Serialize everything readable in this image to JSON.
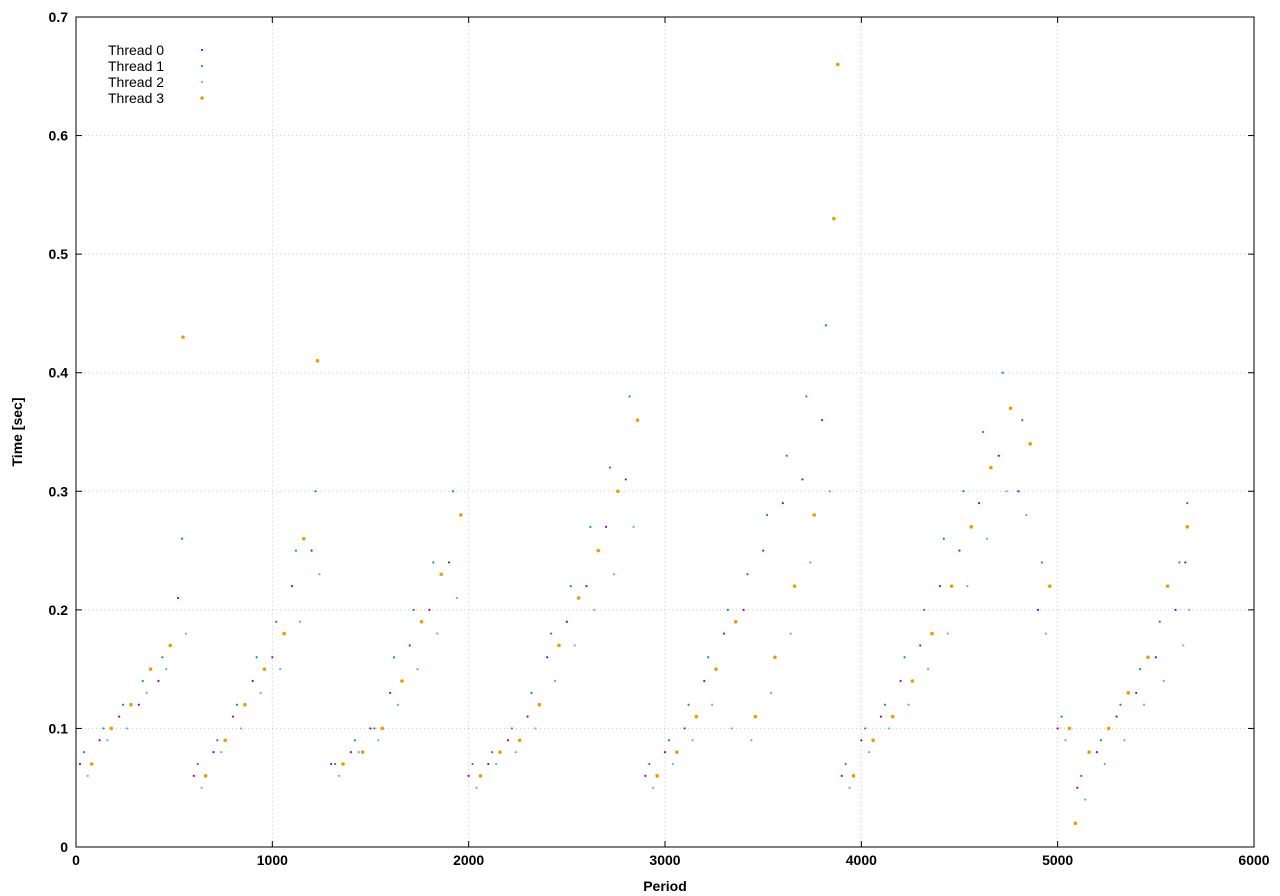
{
  "chart_data": {
    "type": "scatter",
    "title": "",
    "xlabel": "Period",
    "ylabel": "Time [sec]",
    "xlim": [
      0,
      6000
    ],
    "ylim": [
      0,
      0.7
    ],
    "xticks": [
      0,
      1000,
      2000,
      3000,
      4000,
      5000,
      6000
    ],
    "yticks": [
      0,
      0.1,
      0.2,
      0.3,
      0.4,
      0.5,
      0.6,
      0.7
    ],
    "xtick_labels": [
      "0",
      "1000",
      "2000",
      "3000",
      "4000",
      "5000",
      "6000"
    ],
    "ytick_labels": [
      "0",
      "0.1",
      "0.2",
      "0.3",
      "0.4",
      "0.5",
      "0.6",
      "0.7"
    ],
    "grid": true,
    "legend_position": "top-left",
    "series": [
      {
        "name": "Thread 0",
        "color": "#9400d3",
        "x": [
          20,
          120,
          220,
          320,
          420,
          520,
          600,
          700,
          800,
          900,
          1000,
          1100,
          1200,
          1300,
          1400,
          1500,
          1600,
          1700,
          1800,
          1900,
          2000,
          2100,
          2200,
          2300,
          2400,
          2500,
          2600,
          2700,
          2800,
          2900,
          3000,
          3100,
          3200,
          3300,
          3400,
          3500,
          3600,
          3700,
          3800,
          3900,
          4000,
          4100,
          4200,
          4300,
          4400,
          4500,
          4600,
          4700,
          4800,
          4900,
          5000,
          5100,
          5200,
          5300,
          5400,
          5500,
          5600,
          5650
        ],
        "y": [
          0.07,
          0.09,
          0.11,
          0.12,
          0.14,
          0.21,
          0.06,
          0.08,
          0.11,
          0.14,
          0.16,
          0.22,
          0.25,
          0.07,
          0.08,
          0.1,
          0.13,
          0.17,
          0.2,
          0.24,
          0.06,
          0.07,
          0.09,
          0.11,
          0.16,
          0.19,
          0.22,
          0.27,
          0.31,
          0.06,
          0.08,
          0.1,
          0.14,
          0.18,
          0.2,
          0.25,
          0.29,
          0.31,
          0.36,
          0.06,
          0.09,
          0.11,
          0.14,
          0.17,
          0.22,
          0.25,
          0.29,
          0.33,
          0.3,
          0.2,
          0.1,
          0.05,
          0.08,
          0.11,
          0.13,
          0.16,
          0.2,
          0.24
        ]
      },
      {
        "name": "Thread 1",
        "color": "#009e73",
        "x": [
          40,
          140,
          240,
          340,
          440,
          540,
          620,
          720,
          820,
          920,
          1020,
          1120,
          1220,
          1320,
          1420,
          1520,
          1620,
          1720,
          1820,
          1920,
          2020,
          2120,
          2220,
          2320,
          2420,
          2520,
          2620,
          2720,
          2820,
          2920,
          3020,
          3120,
          3220,
          3320,
          3420,
          3520,
          3620,
          3720,
          3820,
          3920,
          4020,
          4120,
          4220,
          4320,
          4420,
          4520,
          4620,
          4720,
          4820,
          4920,
          5020,
          5120,
          5220,
          5320,
          5420,
          5520,
          5620,
          5660
        ],
        "y": [
          0.08,
          0.1,
          0.12,
          0.14,
          0.16,
          0.26,
          0.07,
          0.09,
          0.12,
          0.16,
          0.19,
          0.25,
          0.3,
          0.07,
          0.09,
          0.1,
          0.16,
          0.2,
          0.24,
          0.3,
          0.07,
          0.08,
          0.1,
          0.13,
          0.18,
          0.22,
          0.27,
          0.32,
          0.38,
          0.07,
          0.09,
          0.12,
          0.16,
          0.2,
          0.23,
          0.28,
          0.33,
          0.38,
          0.44,
          0.07,
          0.1,
          0.12,
          0.16,
          0.2,
          0.26,
          0.3,
          0.35,
          0.4,
          0.36,
          0.24,
          0.11,
          0.06,
          0.09,
          0.12,
          0.15,
          0.19,
          0.24,
          0.29
        ]
      },
      {
        "name": "Thread 2",
        "color": "#56b4e9",
        "x": [
          60,
          160,
          260,
          360,
          460,
          560,
          640,
          740,
          840,
          940,
          1040,
          1140,
          1240,
          1340,
          1440,
          1540,
          1640,
          1740,
          1840,
          1940,
          2040,
          2140,
          2240,
          2340,
          2440,
          2540,
          2640,
          2740,
          2840,
          2940,
          3040,
          3140,
          3240,
          3340,
          3440,
          3540,
          3640,
          3740,
          3840,
          3940,
          4040,
          4140,
          4240,
          4340,
          4440,
          4540,
          4640,
          4740,
          4840,
          4940,
          5040,
          5140,
          5240,
          5340,
          5440,
          5540,
          5640,
          5670
        ],
        "y": [
          0.06,
          0.09,
          0.1,
          0.13,
          0.15,
          0.18,
          0.05,
          0.08,
          0.1,
          0.13,
          0.15,
          0.19,
          0.23,
          0.06,
          0.08,
          0.09,
          0.12,
          0.15,
          0.18,
          0.21,
          0.05,
          0.07,
          0.08,
          0.1,
          0.14,
          0.17,
          0.2,
          0.23,
          0.27,
          0.05,
          0.07,
          0.09,
          0.12,
          0.1,
          0.09,
          0.13,
          0.18,
          0.24,
          0.3,
          0.05,
          0.08,
          0.1,
          0.12,
          0.15,
          0.18,
          0.22,
          0.26,
          0.3,
          0.28,
          0.18,
          0.09,
          0.04,
          0.07,
          0.09,
          0.12,
          0.14,
          0.17,
          0.2
        ]
      },
      {
        "name": "Thread 3",
        "color": "#e69f00",
        "x": [
          80,
          180,
          280,
          380,
          480,
          545,
          660,
          760,
          860,
          960,
          1060,
          1160,
          1230,
          1360,
          1460,
          1560,
          1660,
          1760,
          1860,
          1960,
          2060,
          2160,
          2260,
          2360,
          2460,
          2560,
          2660,
          2760,
          2860,
          2960,
          3060,
          3160,
          3260,
          3360,
          3460,
          3560,
          3660,
          3760,
          3860,
          3880,
          3960,
          4060,
          4160,
          4260,
          4360,
          4460,
          4560,
          4660,
          4760,
          4860,
          4960,
          5060,
          5090,
          5160,
          5260,
          5360,
          5460,
          5560,
          5660
        ],
        "y": [
          0.07,
          0.1,
          0.12,
          0.15,
          0.17,
          0.43,
          0.06,
          0.09,
          0.12,
          0.15,
          0.18,
          0.26,
          0.41,
          0.07,
          0.08,
          0.1,
          0.14,
          0.19,
          0.23,
          0.28,
          0.06,
          0.08,
          0.09,
          0.12,
          0.17,
          0.21,
          0.25,
          0.3,
          0.36,
          0.06,
          0.08,
          0.11,
          0.15,
          0.19,
          0.11,
          0.16,
          0.22,
          0.28,
          0.53,
          0.66,
          0.06,
          0.09,
          0.11,
          0.14,
          0.18,
          0.22,
          0.27,
          0.32,
          0.37,
          0.34,
          0.22,
          0.1,
          0.02,
          0.08,
          0.1,
          0.13,
          0.16,
          0.22,
          0.27
        ]
      }
    ]
  }
}
